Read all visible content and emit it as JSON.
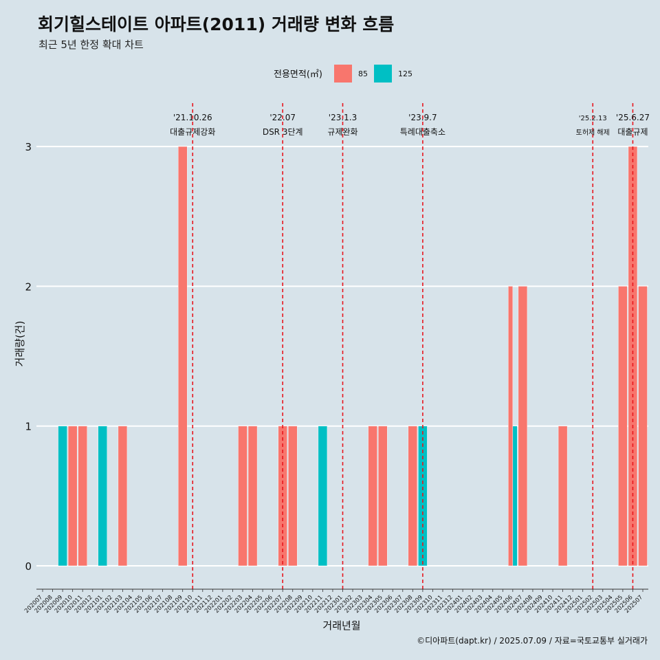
{
  "title": "회기힐스테이트 아파트(2011) 거래량 변화 흐름",
  "subtitle": "최근 5년 한정 확대 차트",
  "caption": "©디아파트(dapt.kr) / 2025.07.09 / 자료=국토교통부 실거래가",
  "colors": {
    "85": "#f8766d",
    "125": "#00bfc4",
    "background": "#d7e3ea",
    "grid": "#ffffff",
    "event_line": "#e8141c"
  },
  "chart_data": {
    "type": "bar",
    "xlabel": "거래년월",
    "ylabel": "거래량(건)",
    "ylim": [
      0,
      3
    ],
    "yticks": [
      "0",
      "1",
      "2",
      "3"
    ],
    "legend": {
      "title": "전용면적(㎡)",
      "position": "top",
      "entries": [
        "85",
        "125"
      ]
    },
    "categories": [
      "202007",
      "202008",
      "202009",
      "202010",
      "202011",
      "202012",
      "202101",
      "202102",
      "202103",
      "202104",
      "202105",
      "202106",
      "202107",
      "202108",
      "202109",
      "202110",
      "202111",
      "202112",
      "202201",
      "202202",
      "202203",
      "202204",
      "202205",
      "202206",
      "202207",
      "202208",
      "202209",
      "202210",
      "202211",
      "202212",
      "202301",
      "202302",
      "202303",
      "202304",
      "202305",
      "202306",
      "202307",
      "202308",
      "202309",
      "202310",
      "202311",
      "202312",
      "202401",
      "202402",
      "202403",
      "202404",
      "202405",
      "202406",
      "202407",
      "202408",
      "202409",
      "202410",
      "202411",
      "202412",
      "202501",
      "202502",
      "202503",
      "202504",
      "202505",
      "202506",
      "202507"
    ],
    "series": [
      {
        "name": "85",
        "values": [
          0,
          0,
          0,
          1,
          1,
          0,
          0,
          0,
          1,
          0,
          0,
          0,
          0,
          0,
          3,
          0,
          0,
          0,
          0,
          0,
          1,
          1,
          0,
          0,
          1,
          1,
          0,
          0,
          0,
          0,
          0,
          0,
          0,
          1,
          1,
          0,
          0,
          1,
          0,
          0,
          0,
          0,
          0,
          0,
          0,
          0,
          0,
          2,
          2,
          0,
          0,
          0,
          1,
          0,
          0,
          0,
          0,
          0,
          2,
          3,
          2
        ]
      },
      {
        "name": "125",
        "values": [
          0,
          0,
          1,
          0,
          0,
          0,
          1,
          0,
          0,
          0,
          0,
          0,
          0,
          0,
          0,
          0,
          0,
          0,
          0,
          0,
          0,
          0,
          0,
          0,
          0,
          0,
          0,
          0,
          1,
          0,
          0,
          0,
          0,
          0,
          0,
          0,
          0,
          0,
          1,
          0,
          0,
          0,
          0,
          0,
          0,
          0,
          0,
          1,
          0,
          0,
          0,
          0,
          0,
          0,
          0,
          0,
          0,
          0,
          0,
          0,
          0
        ]
      }
    ],
    "events": [
      {
        "x": "202110",
        "date": "'21.10.26",
        "label": "대출규제강화"
      },
      {
        "x": "202207",
        "date": "'22.07",
        "label": "DSR 3단계"
      },
      {
        "x": "202301",
        "date": "'23.1.3",
        "label": "규제완화"
      },
      {
        "x": "202309",
        "date": "'23.9.7",
        "label": "특례대출축소"
      },
      {
        "x": "202502",
        "date": "'25.2.13",
        "label": "토허제 해제",
        "small": true
      },
      {
        "x": "202506",
        "date": "'25.6.27",
        "label": "대출규제"
      }
    ]
  }
}
